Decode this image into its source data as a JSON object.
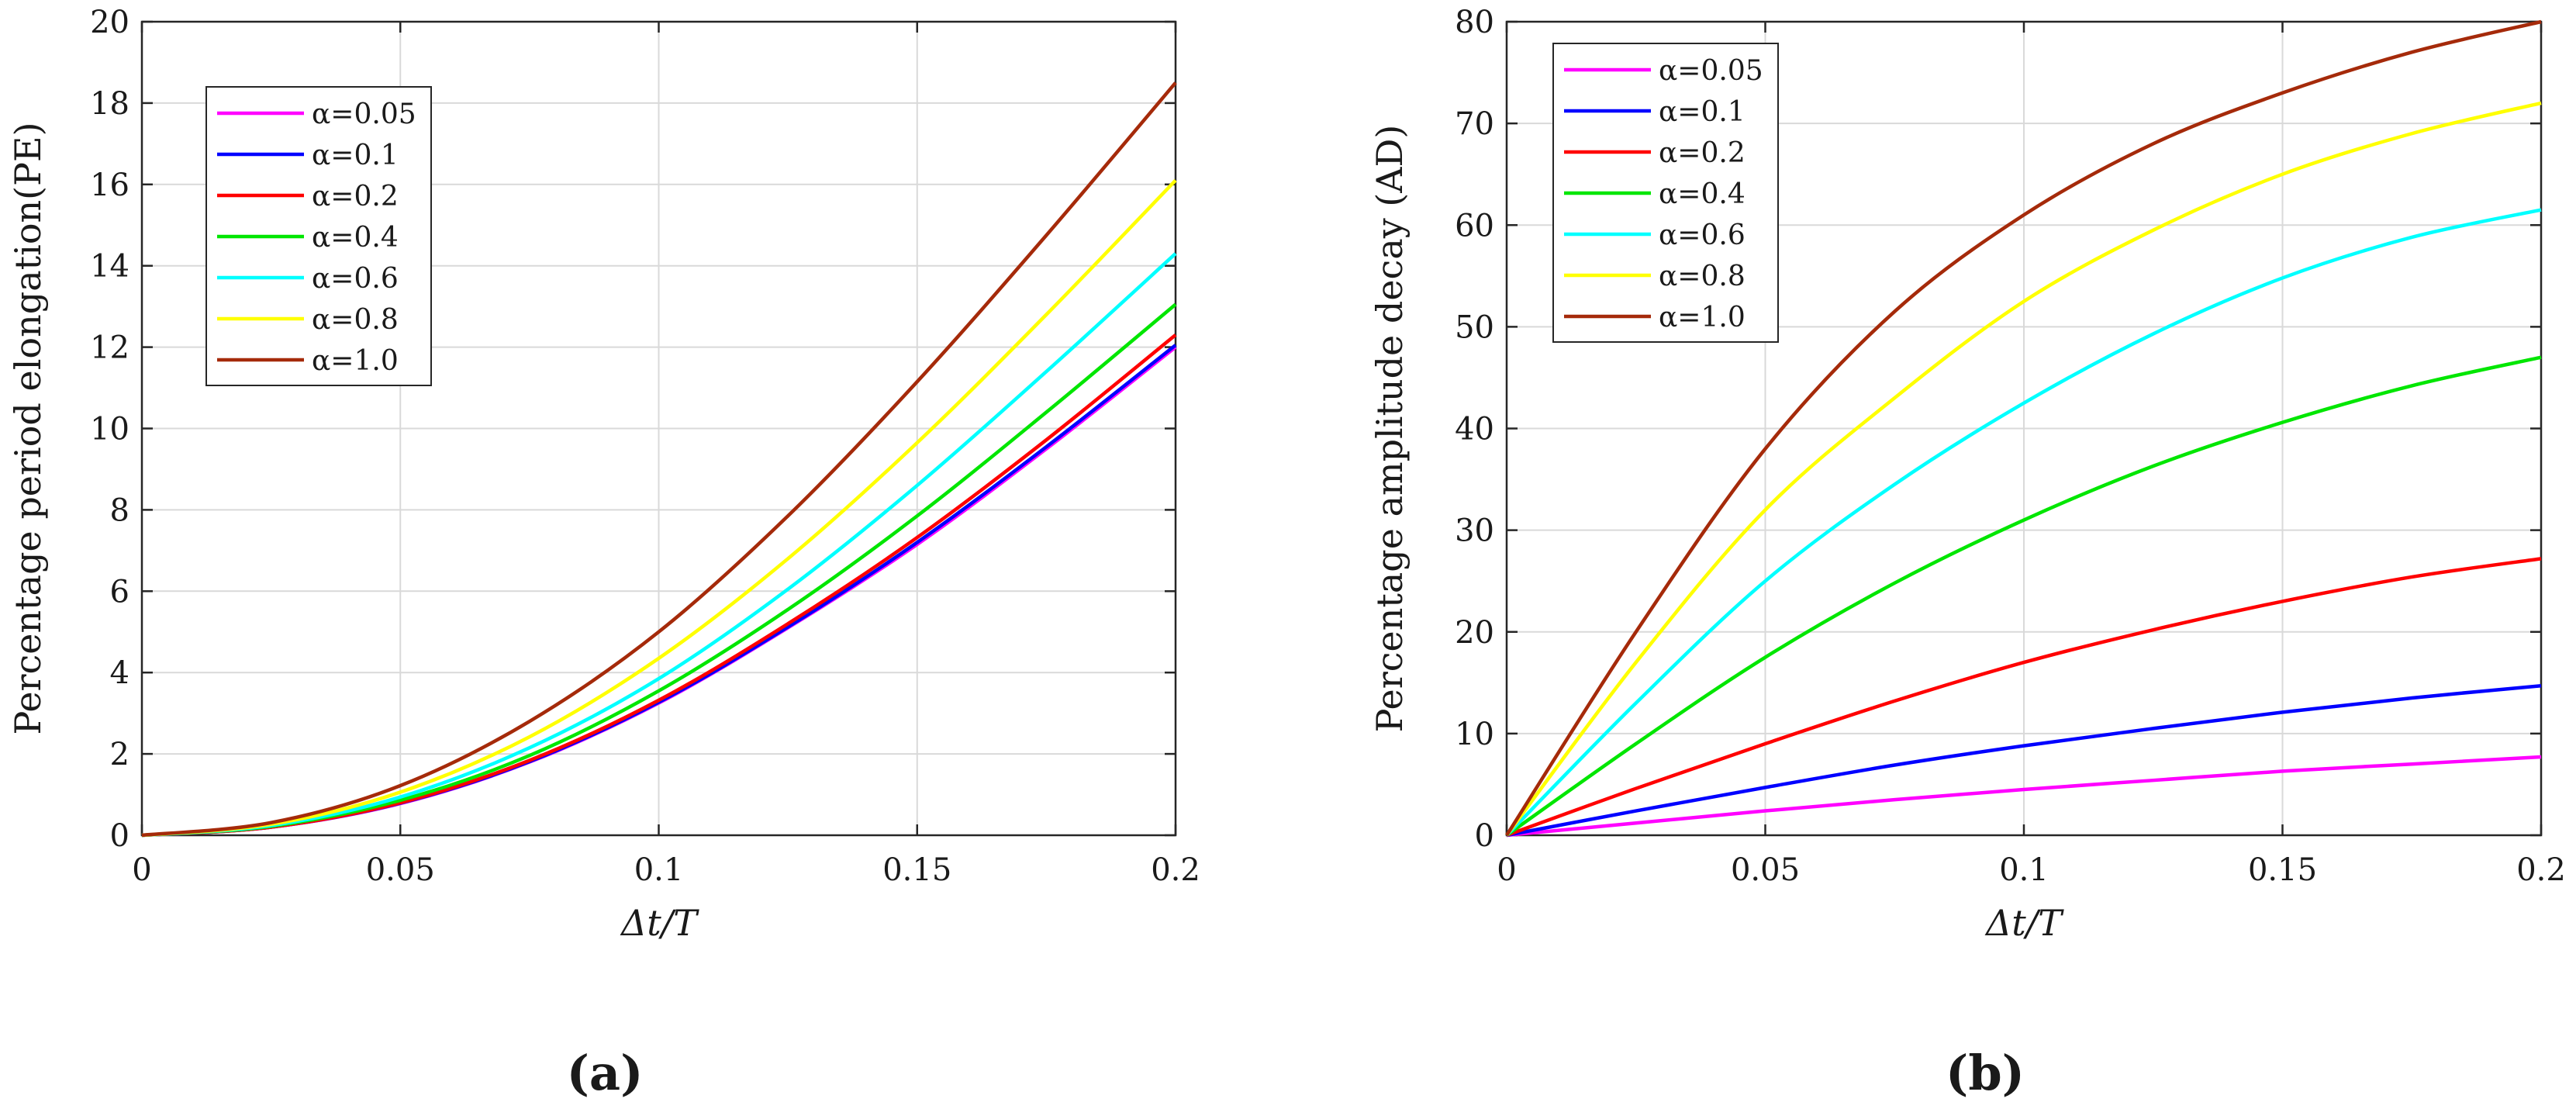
{
  "chart_data": [
    {
      "type": "line",
      "panel_label": "(a)",
      "ylabel": "Percentage period elongation(PE)",
      "xlabel": "Δt/T",
      "xlim": [
        0,
        0.2
      ],
      "ylim": [
        0,
        20
      ],
      "xticks": [
        0,
        0.05,
        0.1,
        0.15,
        0.2
      ],
      "xtick_labels": [
        "0",
        "0.05",
        "0.1",
        "0.15",
        "0.2"
      ],
      "yticks": [
        0,
        2,
        4,
        6,
        8,
        10,
        12,
        14,
        16,
        18,
        20
      ],
      "ytick_labels": [
        "0",
        "2",
        "4",
        "6",
        "8",
        "10",
        "12",
        "14",
        "16",
        "18",
        "20"
      ],
      "grid": true,
      "legend_position": "top-left",
      "x": [
        0,
        0.025,
        0.05,
        0.075,
        0.1,
        0.125,
        0.15,
        0.175,
        0.2
      ],
      "series": [
        {
          "name": "α=0.05",
          "color": "#ff00ff",
          "values": [
            0,
            0.2,
            0.78,
            1.8,
            3.25,
            5.1,
            7.15,
            9.5,
            12.0
          ]
        },
        {
          "name": "α=0.1",
          "color": "#0000ff",
          "values": [
            0,
            0.2,
            0.79,
            1.81,
            3.27,
            5.12,
            7.2,
            9.55,
            12.05
          ]
        },
        {
          "name": "α=0.2",
          "color": "#ff0000",
          "values": [
            0,
            0.2,
            0.8,
            1.84,
            3.32,
            5.2,
            7.32,
            9.72,
            12.3
          ]
        },
        {
          "name": "α=0.4",
          "color": "#00e600",
          "values": [
            0,
            0.22,
            0.86,
            1.96,
            3.55,
            5.55,
            7.85,
            10.4,
            13.05
          ]
        },
        {
          "name": "α=0.6",
          "color": "#00ffff",
          "values": [
            0,
            0.24,
            0.94,
            2.15,
            3.85,
            6.05,
            8.6,
            11.4,
            14.3
          ]
        },
        {
          "name": "α=0.8",
          "color": "#ffff00",
          "values": [
            0,
            0.27,
            1.06,
            2.42,
            4.35,
            6.8,
            9.65,
            12.8,
            16.1
          ]
        },
        {
          "name": "α=1.0",
          "color": "#a52a0a",
          "values": [
            0,
            0.31,
            1.22,
            2.8,
            5.0,
            7.85,
            11.15,
            14.75,
            18.5
          ]
        }
      ]
    },
    {
      "type": "line",
      "panel_label": "(b)",
      "ylabel": "Percentage amplitude decay (AD)",
      "xlabel": "Δt/T",
      "xlim": [
        0,
        0.2
      ],
      "ylim": [
        0,
        80
      ],
      "xticks": [
        0,
        0.05,
        0.1,
        0.15,
        0.2
      ],
      "xtick_labels": [
        "0",
        "0.05",
        "0.1",
        "0.15",
        "0.2"
      ],
      "yticks": [
        0,
        10,
        20,
        30,
        40,
        50,
        60,
        70,
        80
      ],
      "ytick_labels": [
        "0",
        "10",
        "20",
        "30",
        "40",
        "50",
        "60",
        "70",
        "80"
      ],
      "grid": true,
      "legend_position": "top-left",
      "x": [
        0,
        0.025,
        0.05,
        0.075,
        0.1,
        0.125,
        0.15,
        0.175,
        0.2
      ],
      "series": [
        {
          "name": "α=0.05",
          "color": "#ff00ff",
          "values": [
            0,
            1.2,
            2.4,
            3.5,
            4.5,
            5.4,
            6.3,
            7.0,
            7.7
          ]
        },
        {
          "name": "α=0.1",
          "color": "#0000ff",
          "values": [
            0,
            2.4,
            4.7,
            6.9,
            8.8,
            10.5,
            12.1,
            13.5,
            14.7
          ]
        },
        {
          "name": "α=0.2",
          "color": "#ff0000",
          "values": [
            0,
            4.6,
            9.0,
            13.2,
            17.0,
            20.2,
            23.0,
            25.4,
            27.2
          ]
        },
        {
          "name": "α=0.4",
          "color": "#00e600",
          "values": [
            0,
            9.0,
            17.5,
            24.8,
            31.0,
            36.3,
            40.6,
            44.2,
            47.0
          ]
        },
        {
          "name": "α=0.6",
          "color": "#00ffff",
          "values": [
            0,
            13.0,
            25.0,
            34.5,
            42.5,
            49.3,
            54.8,
            58.8,
            61.5
          ]
        },
        {
          "name": "α=0.8",
          "color": "#ffff00",
          "values": [
            0,
            17.0,
            32.0,
            43.0,
            52.5,
            59.5,
            65.0,
            69.0,
            72.0
          ]
        },
        {
          "name": "α=1.0",
          "color": "#a52a0a",
          "values": [
            0,
            20.0,
            38.0,
            51.5,
            61.0,
            68.0,
            73.0,
            77.0,
            80.0
          ]
        }
      ]
    }
  ]
}
